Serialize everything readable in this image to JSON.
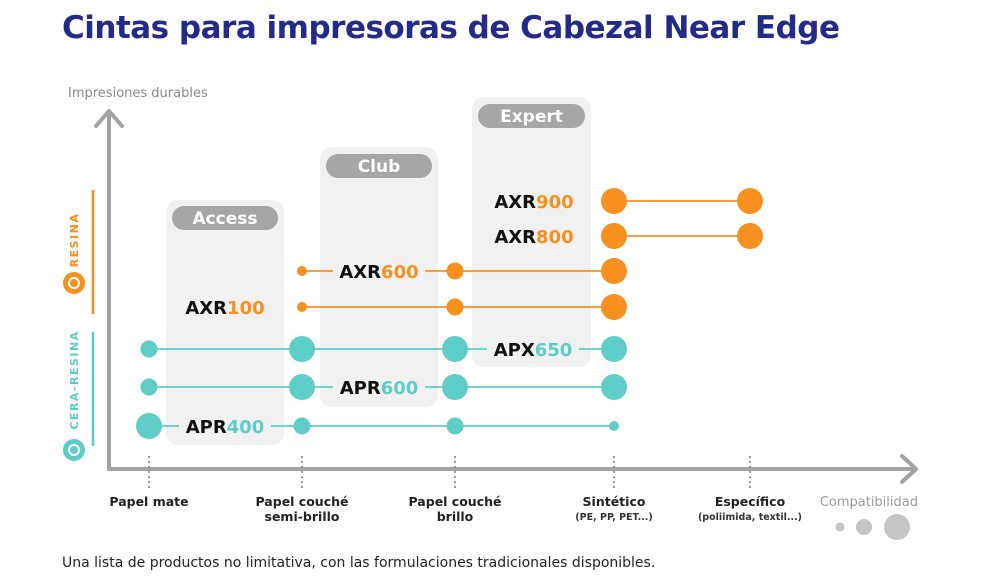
{
  "title": "Cintas para impresoras de Cabezal Near Edge",
  "footnote": "Una lista de productos no limitativa, con las formulaciones tradicionales disponibles.",
  "colors": {
    "title": "#242a87",
    "orange": "#f7901e",
    "teal": "#5ecdc8",
    "axis": "#a3a3a3",
    "panel": "#f1f1f1",
    "pill": "#a6a6a6",
    "grey_text": "#8a8a8a"
  },
  "chart_data": {
    "type": "scatter",
    "ylabel": "Impresiones durables",
    "xlabel": "Compatibilidad",
    "categories": [
      {
        "label": "Papel mate",
        "sub": ""
      },
      {
        "label": "Papel couché semi-brillo",
        "sub": ""
      },
      {
        "label": "Papel couché brillo",
        "sub": ""
      },
      {
        "label": "Sintético",
        "sub": "(PE, PP, PET...)"
      },
      {
        "label": "Específico",
        "sub": "(poliimida, textil...)"
      }
    ],
    "groups": [
      {
        "name": "Access",
        "from": "Papel mate",
        "to": "Papel couché semi-brillo"
      },
      {
        "name": "Club",
        "from": "Papel couché semi-brillo",
        "to": "Papel couché brillo"
      },
      {
        "name": "Expert",
        "from": "Papel couché brillo",
        "to": "Sintético"
      }
    ],
    "bands": [
      {
        "name": "RESINA",
        "color": "orange",
        "icon": "resina-icon"
      },
      {
        "name": "CERA-RESINA",
        "color": "teal",
        "icon": "cera-resina-icon"
      }
    ],
    "series": [
      {
        "prefix": "AXR",
        "number": "900",
        "type": "RESINA",
        "group": "Expert",
        "points": [
          {
            "x": "Sintético",
            "size": "large"
          },
          {
            "x": "Específico",
            "size": "large"
          }
        ]
      },
      {
        "prefix": "AXR",
        "number": "800",
        "type": "RESINA",
        "group": "Expert",
        "points": [
          {
            "x": "Sintético",
            "size": "large"
          },
          {
            "x": "Específico",
            "size": "large"
          }
        ]
      },
      {
        "prefix": "AXR",
        "number": "600",
        "type": "RESINA",
        "group": "Club",
        "points": [
          {
            "x": "Papel couché semi-brillo",
            "size": "small"
          },
          {
            "x": "Papel couché brillo",
            "size": "medium"
          },
          {
            "x": "Sintético",
            "size": "large"
          }
        ]
      },
      {
        "prefix": "AXR",
        "number": "100",
        "type": "RESINA",
        "group": "Access",
        "points": [
          {
            "x": "Papel couché semi-brillo",
            "size": "small"
          },
          {
            "x": "Papel couché brillo",
            "size": "medium"
          },
          {
            "x": "Sintético",
            "size": "large"
          }
        ]
      },
      {
        "prefix": "APX",
        "number": "650",
        "type": "CERA-RESINA",
        "group": "Expert",
        "points": [
          {
            "x": "Papel mate",
            "size": "medium"
          },
          {
            "x": "Papel couché semi-brillo",
            "size": "large"
          },
          {
            "x": "Papel couché brillo",
            "size": "large"
          },
          {
            "x": "Sintético",
            "size": "large"
          }
        ]
      },
      {
        "prefix": "APR",
        "number": "600",
        "type": "CERA-RESINA",
        "group": "Club",
        "points": [
          {
            "x": "Papel mate",
            "size": "medium"
          },
          {
            "x": "Papel couché semi-brillo",
            "size": "large"
          },
          {
            "x": "Papel couché brillo",
            "size": "large"
          },
          {
            "x": "Sintético",
            "size": "large"
          }
        ]
      },
      {
        "prefix": "APR",
        "number": "400",
        "type": "CERA-RESINA",
        "group": "Access",
        "points": [
          {
            "x": "Papel mate",
            "size": "large"
          },
          {
            "x": "Papel couché semi-brillo",
            "size": "medium"
          },
          {
            "x": "Papel couché brillo",
            "size": "medium"
          },
          {
            "x": "Sintético",
            "size": "small"
          }
        ]
      }
    ],
    "legend": [
      {
        "size": "small"
      },
      {
        "size": "medium"
      },
      {
        "size": "large"
      }
    ],
    "grid": false
  }
}
